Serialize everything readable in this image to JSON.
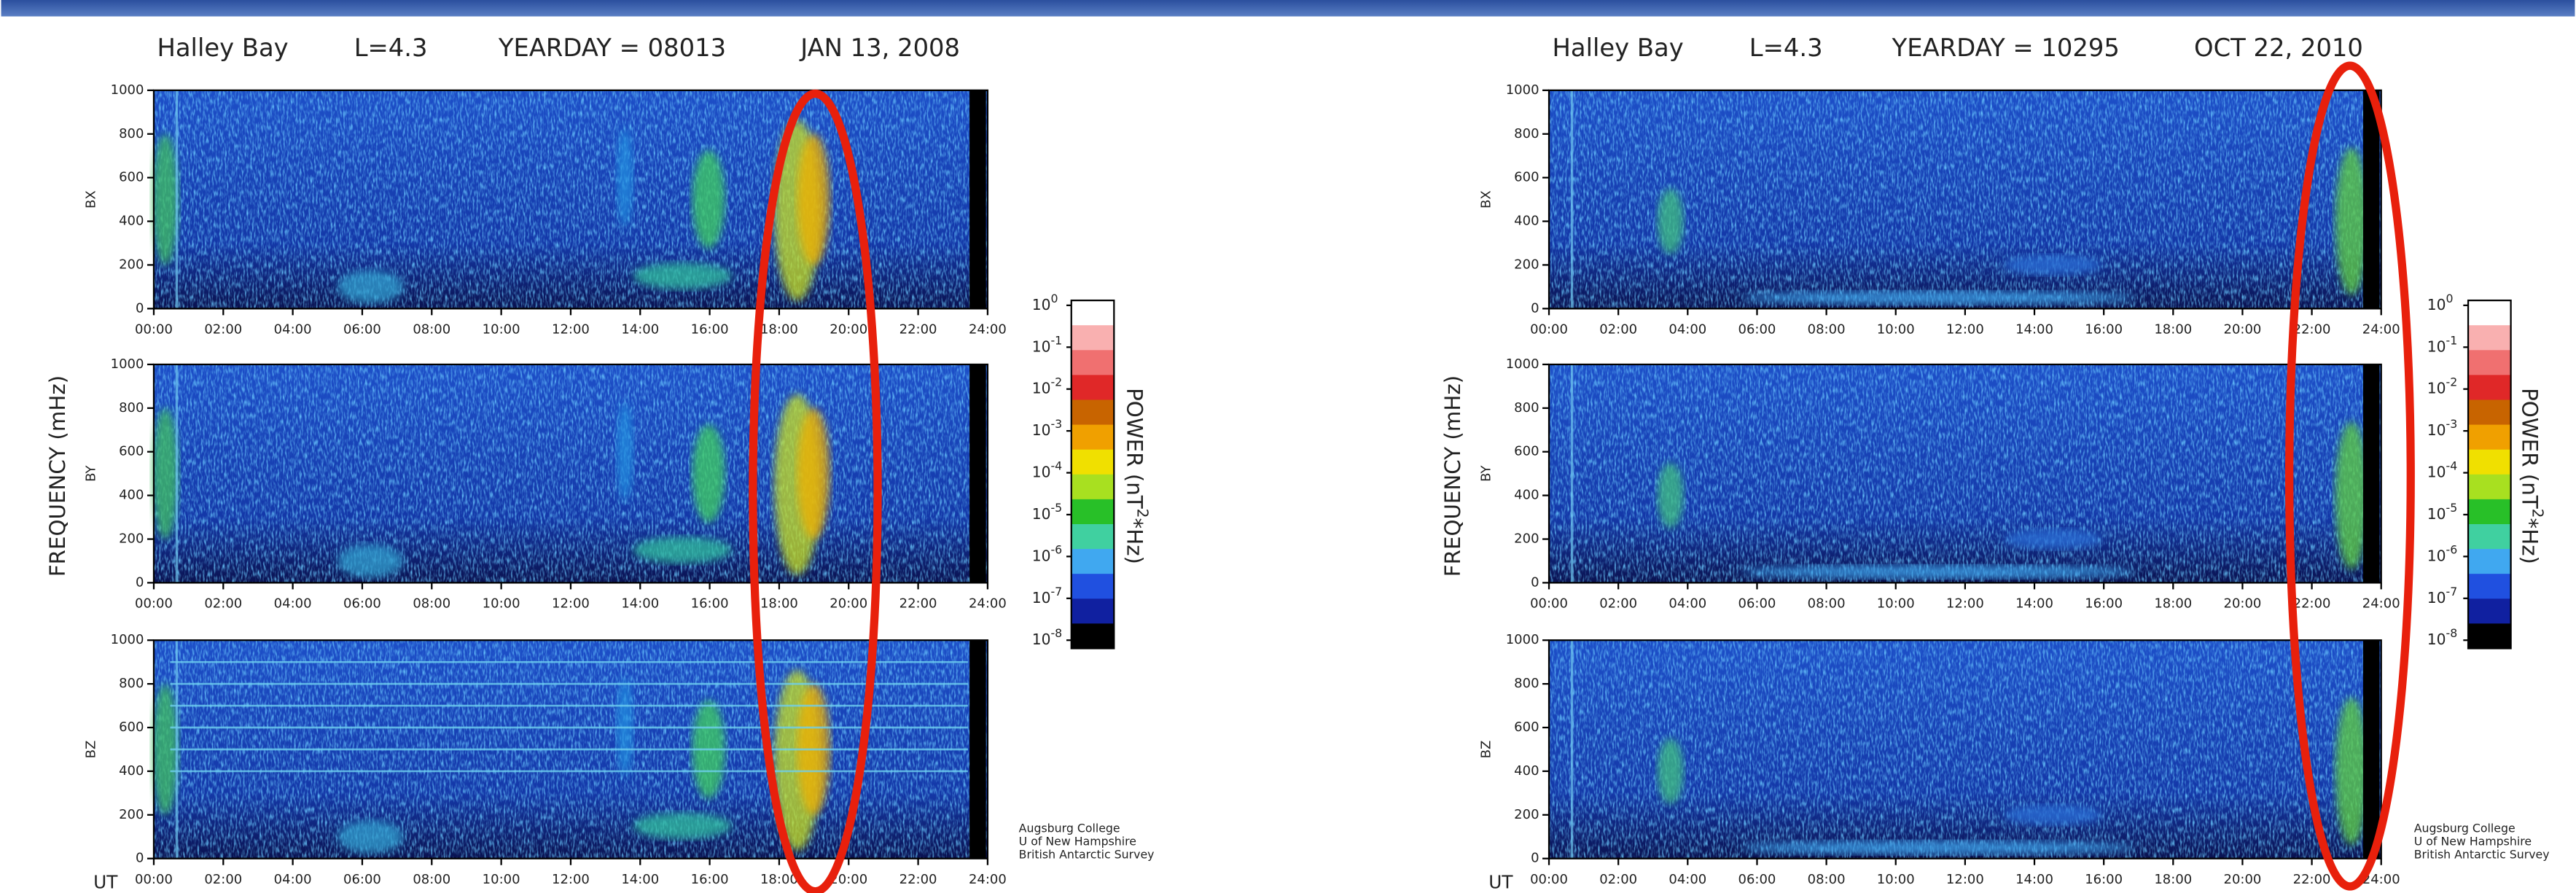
{
  "panels": [
    {
      "title": {
        "station": "Halley Bay",
        "lshell": "L=4.3",
        "yearday": "YEARDAY = 08013",
        "date": "JAN  13, 2008"
      },
      "ylabel": "FREQUENCY (mHz)",
      "xlabel": "UT",
      "components": [
        "BX",
        "BY",
        "BZ"
      ],
      "yticks": [
        "0",
        "200",
        "400",
        "600",
        "800",
        "1000"
      ],
      "xticks": [
        "00:00",
        "02:00",
        "04:00",
        "06:00",
        "08:00",
        "10:00",
        "12:00",
        "14:00",
        "16:00",
        "18:00",
        "20:00",
        "22:00",
        "24:00"
      ],
      "colorbar": {
        "label": "POWER (nT",
        "sup": "2",
        "label_end": "*Hz)",
        "base": "10",
        "exponents": [
          "0",
          "-1",
          "-2",
          "-3",
          "-4",
          "-5",
          "-6",
          "-7",
          "-8"
        ]
      },
      "credits": [
        "Augsburg College",
        "U of New Hampshire",
        "British Antarctic Survey"
      ]
    },
    {
      "title": {
        "station": "Halley Bay",
        "lshell": "L=4.3",
        "yearday": "YEARDAY = 10295",
        "date": "OCT  22, 2010"
      },
      "ylabel": "FREQUENCY (mHz)",
      "xlabel": "UT",
      "components": [
        "BX",
        "BY",
        "BZ"
      ],
      "yticks": [
        "0",
        "200",
        "400",
        "600",
        "800",
        "1000"
      ],
      "xticks": [
        "00:00",
        "02:00",
        "04:00",
        "06:00",
        "08:00",
        "10:00",
        "12:00",
        "14:00",
        "16:00",
        "18:00",
        "20:00",
        "22:00",
        "24:00"
      ],
      "colorbar": {
        "label": "POWER (nT",
        "sup": "2",
        "label_end": "*Hz)",
        "base": "10",
        "exponents": [
          "0",
          "-1",
          "-2",
          "-3",
          "-4",
          "-5",
          "-6",
          "-7",
          "-8"
        ]
      },
      "credits": [
        "Augsburg College",
        "U of New Hampshire",
        "British Antarctic Survey"
      ]
    }
  ]
}
